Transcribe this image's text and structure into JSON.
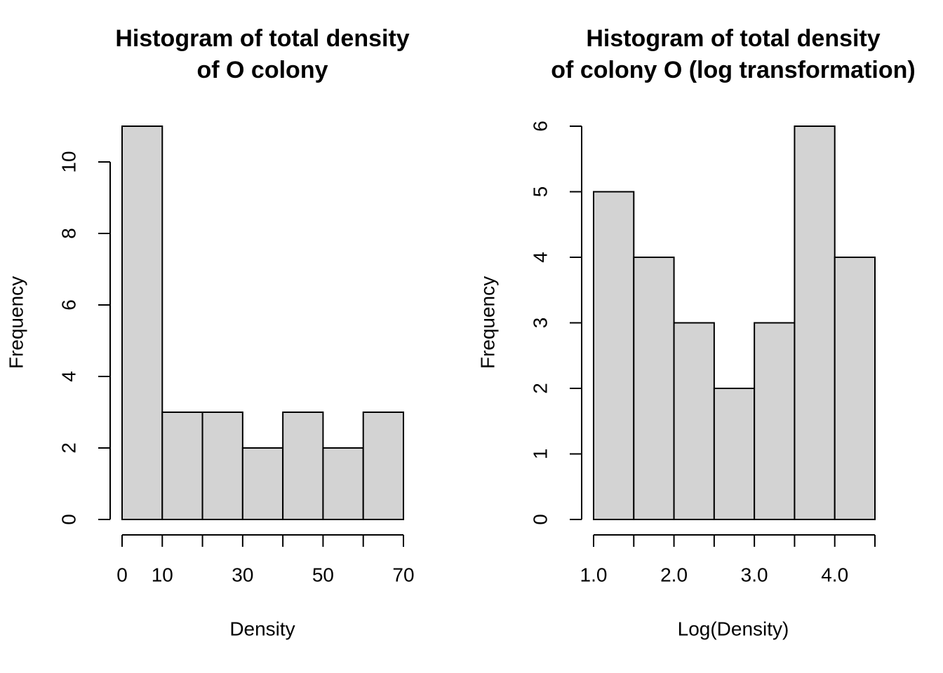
{
  "chart_data": [
    {
      "type": "histogram",
      "title": [
        "Histogram of total density",
        "of O colony"
      ],
      "x_label": "Density",
      "y_label": "Frequency",
      "bins": [
        0,
        10,
        20,
        30,
        40,
        50,
        60,
        70
      ],
      "values": [
        11,
        3,
        3,
        2,
        3,
        2,
        3
      ],
      "color": "#d3d3d3",
      "xlim": [
        0,
        70
      ],
      "ylim": [
        0,
        11
      ],
      "xticks": [
        0,
        10,
        30,
        50,
        70
      ],
      "yticks": [
        0,
        2,
        4,
        6,
        8,
        10
      ]
    },
    {
      "type": "histogram",
      "title": [
        "Histogram of total density",
        "of colony O (log transformation)"
      ],
      "x_label": "Log(Density)",
      "y_label": "Frequency",
      "bins": [
        1,
        1.5,
        2,
        2.5,
        3,
        3.5,
        4,
        4.5
      ],
      "values": [
        5,
        4,
        3,
        2,
        3,
        6,
        4
      ],
      "color": "#d3d3d3",
      "xlim": [
        1,
        4.5
      ],
      "ylim": [
        0,
        6
      ],
      "xticks": [
        {
          "value": 1,
          "label": "1.0"
        },
        {
          "value": 2,
          "label": "2.0"
        },
        {
          "value": 3,
          "label": "3.0"
        },
        {
          "value": 4,
          "label": "4.0"
        }
      ],
      "yticks": [
        0,
        1,
        2,
        3,
        4,
        5,
        6
      ]
    }
  ]
}
